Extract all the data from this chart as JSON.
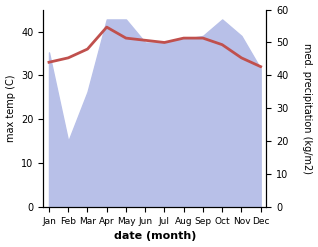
{
  "months": [
    "Jan",
    "Feb",
    "Mar",
    "Apr",
    "May",
    "Jun",
    "Jul",
    "Aug",
    "Sep",
    "Oct",
    "Nov",
    "Dec"
  ],
  "temp": [
    33,
    34,
    36,
    41,
    38.5,
    38,
    37.5,
    38.5,
    38.5,
    37,
    34,
    32
  ],
  "precip": [
    47,
    20,
    35,
    57,
    57,
    50,
    50,
    51,
    52,
    57,
    52,
    42
  ],
  "temp_color": "#c0504d",
  "precip_fill_color": "#b8c0e8",
  "temp_ylim": [
    0,
    45
  ],
  "precip_ylim": [
    0,
    60
  ],
  "temp_yticks": [
    0,
    10,
    20,
    30,
    40
  ],
  "precip_yticks": [
    0,
    10,
    20,
    30,
    40,
    50,
    60
  ],
  "xlabel": "date (month)",
  "ylabel_left": "max temp (C)",
  "ylabel_right": "med. precipitation (kg/m2)"
}
